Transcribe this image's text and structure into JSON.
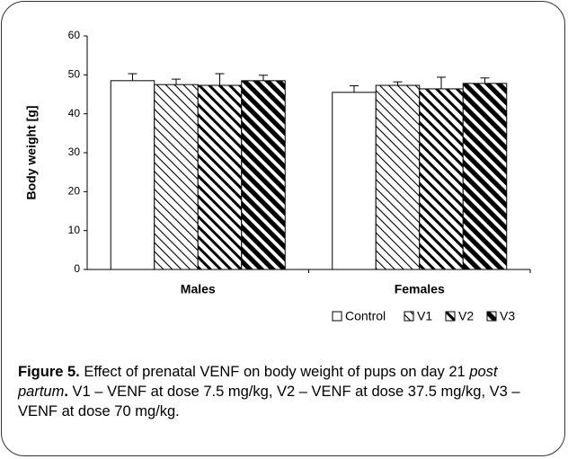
{
  "chart_data": {
    "type": "bar",
    "y_label": "Body weight [g]",
    "categories": [
      "Males",
      "Females"
    ],
    "series": [
      {
        "name": "Control",
        "color": "#000000",
        "values": [
          48.5,
          45.5
        ],
        "errors": [
          1.8,
          1.7
        ]
      },
      {
        "name": "V1",
        "color": "#000000",
        "values": [
          47.5,
          47.3
        ],
        "errors": [
          1.4,
          0.9
        ]
      },
      {
        "name": "V2",
        "color": "#000000",
        "values": [
          47.3,
          46.4
        ],
        "errors": [
          3.0,
          3.0
        ]
      },
      {
        "name": "V3",
        "color": "#000000",
        "values": [
          48.5,
          47.8
        ],
        "errors": [
          1.4,
          1.4
        ]
      }
    ],
    "ylim": [
      0,
      60
    ],
    "yticks": [
      0,
      10,
      20,
      30,
      40,
      50,
      60
    ],
    "grid": false,
    "legend": "bottom",
    "caption": [
      "Figure 5.",
      " Effect of prenatal VENF on body weight of pups on day 21 ",
      "post partum",
      ".",
      " V1 – VENF at dose 7.5 mg/kg, V2 – VENF at dose 37.5 mg/kg, V3 – VENF at dose 70 mg/kg."
    ]
  }
}
